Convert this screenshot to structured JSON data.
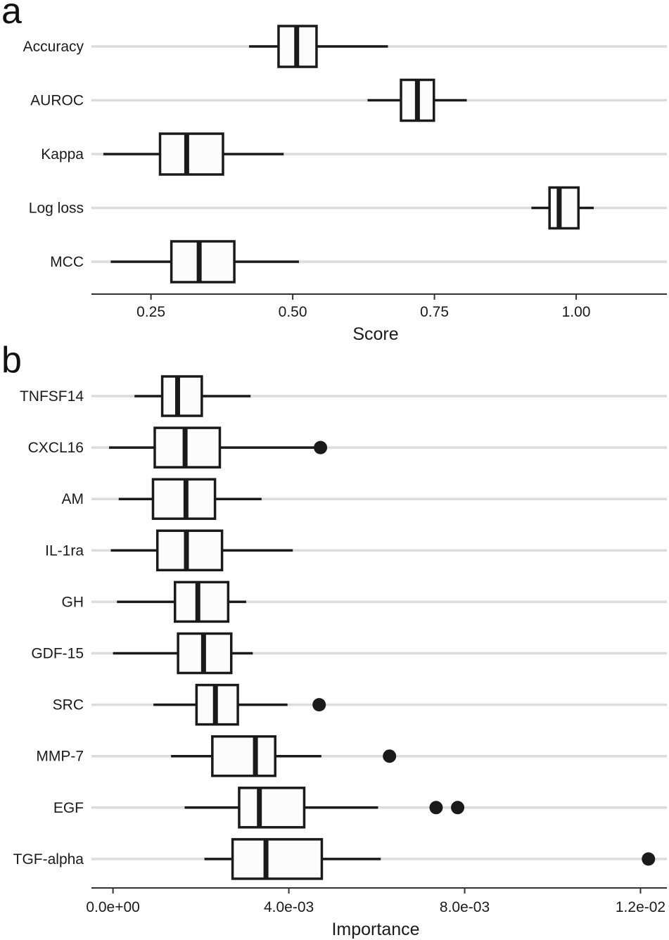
{
  "chart_data": [
    {
      "type": "boxplot",
      "panel_label": "a",
      "xlabel": "Score",
      "ylabel": "",
      "xlim": [
        0.145,
        1.16
      ],
      "xticks": [
        0.25,
        0.5,
        0.75,
        1.0
      ],
      "xtick_labels": [
        "0.25",
        "0.50",
        "0.75",
        "1.00"
      ],
      "grid": true,
      "categories": [
        "Accuracy",
        "AUROC",
        "Kappa",
        "Log loss",
        "MCC"
      ],
      "boxes": [
        {
          "name": "Accuracy",
          "whisker_low": 0.423,
          "q1": 0.475,
          "median": 0.507,
          "q3": 0.542,
          "whisker_high": 0.668,
          "outliers": []
        },
        {
          "name": "AUROC",
          "whisker_low": 0.632,
          "q1": 0.691,
          "median": 0.72,
          "q3": 0.749,
          "whisker_high": 0.807,
          "outliers": []
        },
        {
          "name": "Kappa",
          "whisker_low": 0.166,
          "q1": 0.266,
          "median": 0.313,
          "q3": 0.377,
          "whisker_high": 0.484,
          "outliers": []
        },
        {
          "name": "Log loss",
          "whisker_low": 0.921,
          "q1": 0.953,
          "median": 0.97,
          "q3": 1.004,
          "whisker_high": 1.031,
          "outliers": []
        },
        {
          "name": "MCC",
          "whisker_low": 0.179,
          "q1": 0.286,
          "median": 0.335,
          "q3": 0.397,
          "whisker_high": 0.511,
          "outliers": []
        }
      ]
    },
    {
      "type": "boxplot",
      "panel_label": "b",
      "xlabel": "Importance",
      "ylabel": "",
      "xlim": [
        -0.00049,
        0.0126
      ],
      "xticks": [
        0.0,
        0.004,
        0.008,
        0.012
      ],
      "xtick_labels": [
        "0.0e+00",
        "4.0e-03",
        "8.0e-03",
        "1.2e-02"
      ],
      "grid": true,
      "categories": [
        "TNFSF14",
        "CXCL16",
        "AM",
        "IL-1ra",
        "GH",
        "GDF-15",
        "SRC",
        "MMP-7",
        "EGF",
        "TGF-alpha"
      ],
      "boxes": [
        {
          "name": "TNFSF14",
          "whisker_low": 0.00049,
          "q1": 0.00112,
          "median": 0.00147,
          "q3": 0.00202,
          "whisker_high": 0.00313,
          "outliers": []
        },
        {
          "name": "CXCL16",
          "whisker_low": -9e-05,
          "q1": 0.00095,
          "median": 0.00164,
          "q3": 0.00243,
          "whisker_high": 0.00464,
          "outliers": [
            0.00472
          ]
        },
        {
          "name": "AM",
          "whisker_low": 0.00013,
          "q1": 0.00091,
          "median": 0.00166,
          "q3": 0.00232,
          "whisker_high": 0.00338,
          "outliers": []
        },
        {
          "name": "IL-1ra",
          "whisker_low": -5e-05,
          "q1": 0.00101,
          "median": 0.00167,
          "q3": 0.00248,
          "whisker_high": 0.00409,
          "outliers": []
        },
        {
          "name": "GH",
          "whisker_low": 9e-05,
          "q1": 0.00141,
          "median": 0.00193,
          "q3": 0.00262,
          "whisker_high": 0.00303,
          "outliers": []
        },
        {
          "name": "GDF-15",
          "whisker_low": 0.0,
          "q1": 0.00148,
          "median": 0.00206,
          "q3": 0.00269,
          "whisker_high": 0.00318,
          "outliers": []
        },
        {
          "name": "SRC",
          "whisker_low": 0.00092,
          "q1": 0.0019,
          "median": 0.00233,
          "q3": 0.00284,
          "whisker_high": 0.00397,
          "outliers": [
            0.00469
          ]
        },
        {
          "name": "MMP-7",
          "whisker_low": 0.00132,
          "q1": 0.00226,
          "median": 0.00324,
          "q3": 0.00369,
          "whisker_high": 0.00474,
          "outliers": [
            0.00629
          ]
        },
        {
          "name": "EGF",
          "whisker_low": 0.00163,
          "q1": 0.00287,
          "median": 0.00333,
          "q3": 0.00435,
          "whisker_high": 0.00603,
          "outliers": [
            0.00735,
            0.00784
          ]
        },
        {
          "name": "TGF-alpha",
          "whisker_low": 0.00208,
          "q1": 0.00272,
          "median": 0.00348,
          "q3": 0.00475,
          "whisker_high": 0.00609,
          "outliers": [
            0.01218
          ]
        }
      ]
    }
  ]
}
